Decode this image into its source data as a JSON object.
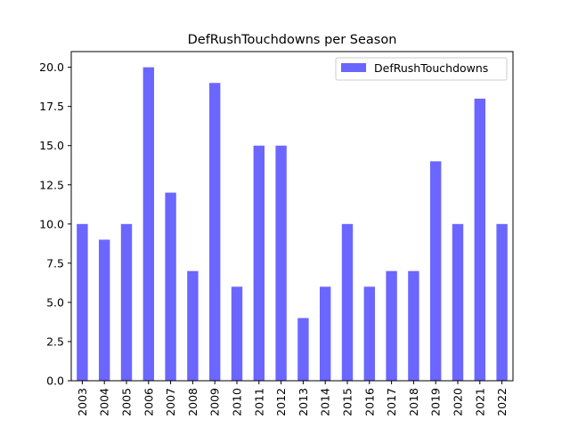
{
  "chart_data": {
    "type": "bar",
    "title": "DefRushTouchdowns per Season",
    "xlabel": "",
    "ylabel": "",
    "categories": [
      "2003",
      "2004",
      "2005",
      "2006",
      "2007",
      "2008",
      "2009",
      "2010",
      "2011",
      "2012",
      "2013",
      "2014",
      "2015",
      "2016",
      "2017",
      "2018",
      "2019",
      "2020",
      "2021",
      "2022"
    ],
    "series": [
      {
        "name": "DefRushTouchdowns",
        "color": "#6b66ff",
        "values": [
          10,
          9,
          10,
          20,
          12,
          7,
          19,
          6,
          15,
          15,
          4,
          6,
          10,
          6,
          7,
          7,
          14,
          10,
          18,
          10
        ]
      }
    ],
    "ylim": [
      0,
      21
    ],
    "yticks": [
      "0.0",
      "2.5",
      "5.0",
      "7.5",
      "10.0",
      "12.5",
      "15.0",
      "17.5",
      "20.0"
    ],
    "legend_position": "top-right",
    "grid": false
  }
}
